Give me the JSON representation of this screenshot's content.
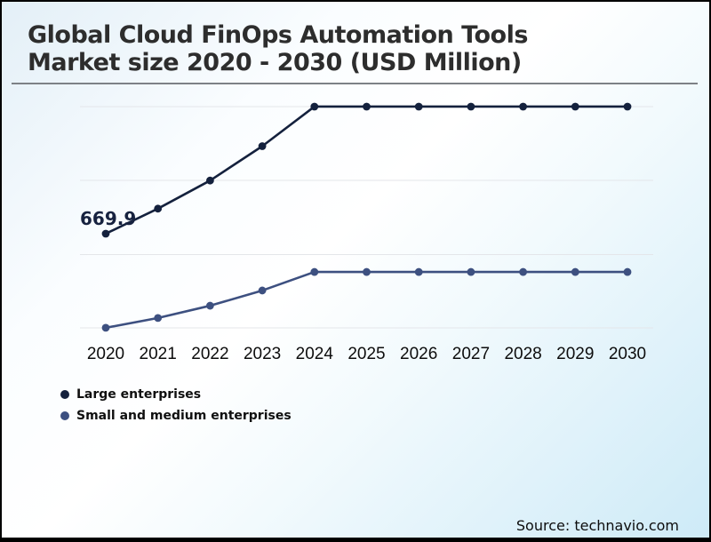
{
  "title": {
    "text": "Global Cloud FinOps Automation Tools\nMarket size 2020 - 2030 (USD Million)"
  },
  "source": {
    "text": "Source: technavio.com"
  },
  "legend": {
    "items": [
      {
        "label": "Large enterprises",
        "color": "#14213d"
      },
      {
        "label": "Small and medium enterprises",
        "color": "#3d5080"
      }
    ]
  },
  "chart_data": {
    "type": "line",
    "title": "Global Cloud FinOps Automation Tools Market size 2020 - 2030 (USD Million)",
    "x": [
      2020,
      2021,
      2022,
      2023,
      2024,
      2025,
      2026,
      2027,
      2028,
      2029,
      2030
    ],
    "series": [
      {
        "name": "Large enterprises",
        "color": "#14213d",
        "values": [
          669.9,
          790,
          925,
          1090,
          1280,
          1280,
          1280,
          1280,
          1280,
          1280,
          1280
        ]
      },
      {
        "name": "Small and medium enterprises",
        "color": "#3d5080",
        "values": [
          218,
          265,
          324,
          397,
          486,
          486,
          486,
          486,
          486,
          486,
          486
        ]
      }
    ],
    "labeled_points": [
      {
        "series": "Large enterprises",
        "year": 2020,
        "label": "669.9"
      }
    ],
    "note": "Only the 2020 Large enterprises point is labeled (669.9); all other values estimated from plot positions. No y-axis labels shown.",
    "xlabel": "",
    "ylabel": "",
    "grid": "horizontal",
    "legend_position": "bottom-left",
    "marker": "circle"
  },
  "colors": {
    "grid": "#e4e6ea",
    "title_text": "#2d2d2d",
    "rule": "#7d8186"
  }
}
